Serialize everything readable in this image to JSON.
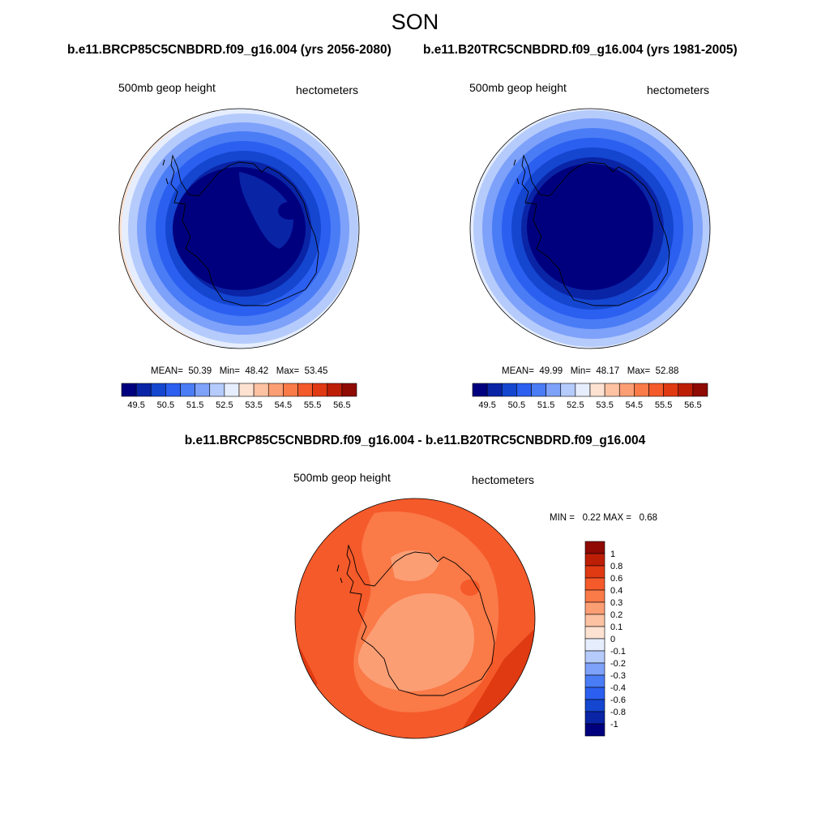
{
  "season": "SON",
  "left_panel": {
    "case_title": "b.e11.BRCP85C5CNBDRD.f09_g16.004 (yrs 2056-2080)",
    "field": "500mb geop height",
    "units": "hectometers",
    "stats": {
      "mean_label": "MEAN=",
      "mean": "50.39",
      "min_label": "Min=",
      "min": "48.42",
      "max_label": "Max=",
      "max": "53.45"
    }
  },
  "right_panel": {
    "case_title": "b.e11.B20TRC5CNBDRD.f09_g16.004 (yrs 1981-2005)",
    "field": "500mb geop height",
    "units": "hectometers",
    "stats": {
      "mean_label": "MEAN=",
      "mean": "49.99",
      "min_label": "Min=",
      "min": "48.17",
      "max_label": "Max=",
      "max": "52.88"
    }
  },
  "diff_panel": {
    "title": "b.e11.BRCP85C5CNBDRD.f09_g16.004 - b.e11.B20TRC5CNBDRD.f09_g16.004",
    "field": "500mb geop height",
    "units": "hectometers",
    "minmax": {
      "min_label": "MIN =",
      "min": "0.22",
      "max_label": "MAX =",
      "max": "0.68"
    }
  },
  "colorbar_abs": {
    "colors": [
      "#00007f",
      "#0a24a6",
      "#1446d0",
      "#2b5ff0",
      "#4a7cf6",
      "#7ea1fa",
      "#b5cbfc",
      "#e6eefe",
      "#fde2d2",
      "#fcc2a2",
      "#fc9e74",
      "#fa7a48",
      "#f55a2a",
      "#e03a12",
      "#bd1e06",
      "#8e0a02"
    ],
    "labels": [
      "49.5",
      "50.5",
      "51.5",
      "52.5",
      "53.5",
      "54.5",
      "55.5",
      "56.5"
    ]
  },
  "colorbar_diff": {
    "colors": [
      "#00007f",
      "#0a24a6",
      "#1446d0",
      "#2b5ff0",
      "#4a7cf6",
      "#7ea1fa",
      "#b5cbfc",
      "#e6eefe",
      "#fde2d2",
      "#fcc2a2",
      "#fc9e74",
      "#fa7a48",
      "#f55a2a",
      "#e03a12",
      "#bd1e06",
      "#8e0a02"
    ],
    "labels": [
      "-1",
      "-0.8",
      "-0.6",
      "-0.4",
      "-0.3",
      "-0.2",
      "-0.1",
      "0",
      "0.1",
      "0.2",
      "0.3",
      "0.4",
      "0.6",
      "0.8",
      "1"
    ]
  }
}
